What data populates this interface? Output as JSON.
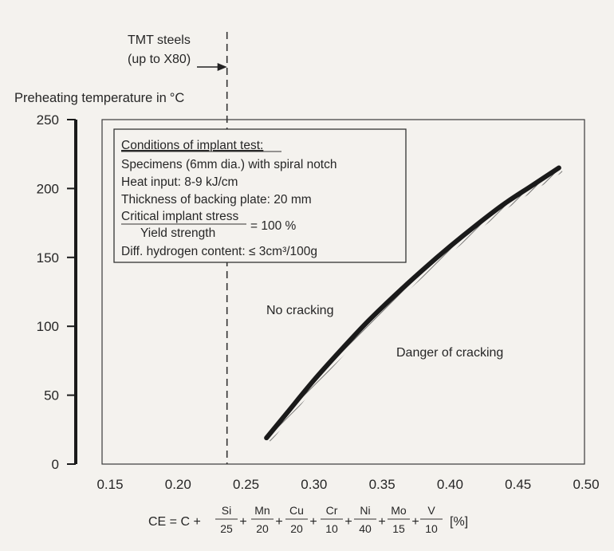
{
  "chart_data": {
    "type": "line",
    "ylabel": "Preheating temperature in",
    "ylabel_unit": "°C",
    "xlabel_formula": {
      "lead": "CE = C +",
      "terms": [
        {
          "num": "Si",
          "den": "25"
        },
        {
          "num": "Mn",
          "den": "20"
        },
        {
          "num": "Cu",
          "den": "20"
        },
        {
          "num": "Cr",
          "den": "10"
        },
        {
          "num": "Ni",
          "den": "40"
        },
        {
          "num": "Mo",
          "den": "15"
        },
        {
          "num": "V",
          "den": "10"
        }
      ],
      "unit": "[%]"
    },
    "xlim": [
      0.15,
      0.5
    ],
    "ylim": [
      0,
      250
    ],
    "x_ticks": [
      "0.15",
      "0.20",
      "0.25",
      "0.30",
      "0.35",
      "0.40",
      "0.45",
      "0.50"
    ],
    "y_ticks": [
      "0",
      "50",
      "100",
      "150",
      "200",
      "250"
    ],
    "series": [
      {
        "x": [
          0.265,
          0.28,
          0.3,
          0.32,
          0.34,
          0.36,
          0.38,
          0.4,
          0.42,
          0.44,
          0.46,
          0.48
        ],
        "y": [
          19,
          37,
          61,
          83,
          104,
          123,
          141,
          158,
          174,
          189,
          202,
          215
        ],
        "color": "#1a1a1a",
        "hatched_side": "below"
      }
    ],
    "reference_line": {
      "x": 0.236,
      "label_lines": [
        "TMT steels",
        "(up to X80)"
      ]
    },
    "annotations": {
      "conditions_title": "Conditions of implant test:",
      "conditions": [
        "Specimens (6mm dia.) with spiral notch",
        "Heat input: 8-9 kJ/cm",
        "Thickness of backing plate: 20 mm"
      ],
      "ratio_numerator": "Critical implant stress",
      "ratio_denominator": "Yield strength",
      "ratio_value": "= 100 %",
      "hydrogen": "Diff. hydrogen content: ≤ 3cm³/100g",
      "region_above": "No cracking",
      "region_below": "Danger of cracking"
    },
    "grid": false
  }
}
